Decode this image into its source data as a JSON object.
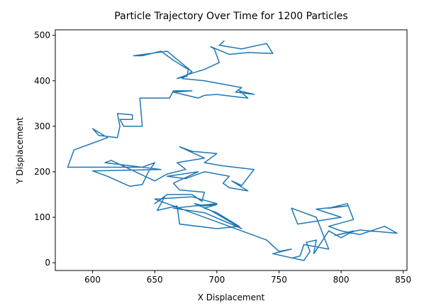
{
  "chart_data": {
    "type": "line",
    "title": "Particle Trajectory Over Time for 1200 Particles",
    "x_label": "X Displacement",
    "y_label": "Y Displacement",
    "xlim": [
      570,
      853
    ],
    "ylim": [
      -17,
      512
    ],
    "xticks": [
      600,
      650,
      700,
      750,
      800,
      850
    ],
    "yticks": [
      0,
      100,
      200,
      300,
      400,
      500
    ],
    "color": "#1f77b4",
    "x": [
      706,
      702,
      720,
      740,
      745,
      725,
      710,
      695,
      698,
      702,
      690,
      678,
      668,
      676,
      677,
      665,
      655,
      640,
      633,
      660,
      680,
      672,
      690,
      700,
      720,
      715,
      730,
      718,
      725,
      715,
      700,
      690,
      685,
      665,
      680,
      665,
      662,
      638,
      640,
      625,
      622,
      632,
      632,
      620,
      622,
      620,
      605,
      600,
      612,
      585,
      580,
      640,
      650,
      645,
      640,
      630,
      612,
      600,
      655,
      610,
      615,
      650,
      660,
      675,
      668,
      690,
      670,
      680,
      700,
      690,
      705,
      730,
      720,
      712,
      725,
      710,
      705,
      710,
      690,
      675,
      660,
      685,
      665,
      670,
      690,
      688,
      680,
      660,
      650,
      658,
      652,
      668,
      670,
      700,
      718,
      700,
      690,
      700,
      690,
      682,
      695,
      720,
      690,
      665,
      700,
      680,
      650,
      740,
      750,
      760,
      745,
      770,
      775,
      772,
      780,
      778,
      790,
      800,
      810,
      795,
      815,
      845,
      835,
      815,
      800,
      790,
      810,
      805,
      790,
      805,
      780,
      800,
      765,
      760,
      780,
      790,
      770,
      767,
      760
    ],
    "values": [
      488,
      478,
      470,
      482,
      460,
      462,
      458,
      475,
      470,
      440,
      425,
      415,
      405,
      410,
      425,
      445,
      465,
      455,
      455,
      465,
      420,
      405,
      400,
      395,
      385,
      375,
      370,
      378,
      362,
      365,
      370,
      368,
      362,
      375,
      378,
      378,
      362,
      362,
      300,
      300,
      315,
      315,
      325,
      328,
      300,
      275,
      280,
      295,
      275,
      248,
      210,
      210,
      220,
      200,
      172,
      168,
      190,
      202,
      205,
      220,
      225,
      180,
      195,
      205,
      220,
      230,
      255,
      245,
      240,
      220,
      213,
      205,
      170,
      180,
      158,
      165,
      175,
      190,
      200,
      185,
      190,
      200,
      175,
      160,
      155,
      135,
      150,
      150,
      130,
      145,
      115,
      125,
      85,
      75,
      80,
      110,
      120,
      128,
      125,
      130,
      115,
      75,
      110,
      120,
      130,
      145,
      140,
      50,
      25,
      30,
      20,
      5,
      25,
      45,
      50,
      20,
      70,
      55,
      70,
      60,
      72,
      65,
      80,
      62,
      70,
      80,
      95,
      130,
      120,
      125,
      118,
      100,
      85,
      120,
      100,
      30,
      40,
      15,
      10
    ]
  }
}
